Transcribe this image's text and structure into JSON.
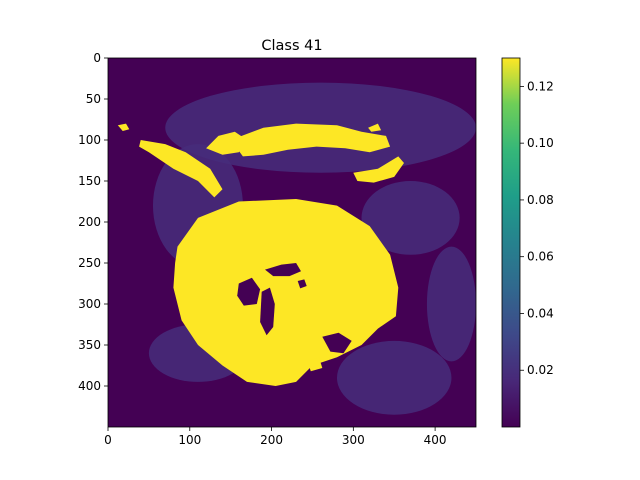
{
  "chart_data": {
    "type": "heatmap",
    "title": "Class 41",
    "xlabel": "",
    "ylabel": "",
    "xlim": [
      0,
      450
    ],
    "ylim": [
      450,
      0
    ],
    "x_ticks": [
      0,
      100,
      200,
      300,
      400
    ],
    "y_ticks": [
      0,
      50,
      100,
      150,
      200,
      250,
      300,
      350,
      400
    ],
    "colorbar": {
      "range": [
        0.0,
        0.13
      ],
      "ticks": [
        0.02,
        0.04,
        0.06,
        0.08,
        0.1,
        0.12
      ],
      "tick_labels": [
        "0.02",
        "0.04",
        "0.06",
        "0.08",
        "0.10",
        "0.12"
      ]
    },
    "colormap": "viridis",
    "colors": {
      "low": "#440154",
      "faint": "#472d7b",
      "high": "#fde725"
    },
    "background_value": 0.002,
    "faint_regions": [
      {
        "name": "upper-arc",
        "cx": 260,
        "cy": 85,
        "rx": 190,
        "ry": 55,
        "value": 0.012
      },
      {
        "name": "left-cheek",
        "cx": 110,
        "cy": 180,
        "rx": 55,
        "ry": 75,
        "value": 0.012
      },
      {
        "name": "right-cheek",
        "cx": 370,
        "cy": 195,
        "rx": 60,
        "ry": 45,
        "value": 0.012
      },
      {
        "name": "lower-left",
        "cx": 110,
        "cy": 360,
        "rx": 60,
        "ry": 35,
        "value": 0.01
      },
      {
        "name": "lower-right",
        "cx": 350,
        "cy": 390,
        "rx": 70,
        "ry": 45,
        "value": 0.01
      },
      {
        "name": "right-edge",
        "cx": 420,
        "cy": 300,
        "rx": 30,
        "ry": 70,
        "value": 0.01
      }
    ],
    "high_regions": [
      {
        "name": "central-blob",
        "value": 0.13,
        "points": [
          [
            85,
            230
          ],
          [
            110,
            195
          ],
          [
            160,
            175
          ],
          [
            230,
            172
          ],
          [
            280,
            180
          ],
          [
            320,
            205
          ],
          [
            345,
            240
          ],
          [
            355,
            280
          ],
          [
            352,
            315
          ],
          [
            330,
            330
          ],
          [
            310,
            350
          ],
          [
            280,
            365
          ],
          [
            250,
            375
          ],
          [
            230,
            395
          ],
          [
            205,
            400
          ],
          [
            170,
            395
          ],
          [
            140,
            375
          ],
          [
            110,
            350
          ],
          [
            90,
            320
          ],
          [
            80,
            280
          ],
          [
            82,
            250
          ]
        ]
      },
      {
        "name": "upper-left-streak",
        "value": 0.13,
        "points": [
          [
            40,
            100
          ],
          [
            70,
            105
          ],
          [
            95,
            115
          ],
          [
            125,
            135
          ],
          [
            140,
            160
          ],
          [
            130,
            170
          ],
          [
            110,
            150
          ],
          [
            80,
            135
          ],
          [
            50,
            115
          ],
          [
            38,
            108
          ]
        ]
      },
      {
        "name": "upper-left-tip",
        "value": 0.13,
        "points": [
          [
            120,
            110
          ],
          [
            135,
            95
          ],
          [
            155,
            90
          ],
          [
            170,
            100
          ],
          [
            160,
            115
          ],
          [
            140,
            118
          ]
        ]
      },
      {
        "name": "upper-left-dot",
        "value": 0.13,
        "points": [
          [
            12,
            82
          ],
          [
            22,
            80
          ],
          [
            26,
            87
          ],
          [
            18,
            89
          ]
        ]
      },
      {
        "name": "upper-center-band",
        "value": 0.13,
        "points": [
          [
            150,
            100
          ],
          [
            190,
            85
          ],
          [
            230,
            80
          ],
          [
            280,
            82
          ],
          [
            310,
            90
          ],
          [
            340,
            95
          ],
          [
            345,
            108
          ],
          [
            320,
            115
          ],
          [
            290,
            110
          ],
          [
            255,
            108
          ],
          [
            220,
            112
          ],
          [
            190,
            118
          ],
          [
            165,
            120
          ]
        ]
      },
      {
        "name": "upper-right-tail",
        "value": 0.13,
        "points": [
          [
            300,
            140
          ],
          [
            330,
            135
          ],
          [
            355,
            120
          ],
          [
            362,
            128
          ],
          [
            350,
            145
          ],
          [
            325,
            152
          ],
          [
            305,
            150
          ]
        ]
      },
      {
        "name": "upper-right-dot",
        "value": 0.13,
        "points": [
          [
            318,
            85
          ],
          [
            330,
            80
          ],
          [
            334,
            88
          ],
          [
            322,
            90
          ]
        ]
      },
      {
        "name": "lower-right-fleck",
        "value": 0.13,
        "points": [
          [
            244,
            370
          ],
          [
            258,
            365
          ],
          [
            262,
            378
          ],
          [
            248,
            382
          ]
        ]
      }
    ],
    "holes": [
      {
        "name": "left-eye",
        "value": 0.002,
        "points": [
          [
            160,
            275
          ],
          [
            176,
            268
          ],
          [
            186,
            282
          ],
          [
            182,
            300
          ],
          [
            166,
            302
          ],
          [
            158,
            290
          ]
        ]
      },
      {
        "name": "nose-slot",
        "value": 0.002,
        "points": [
          [
            188,
            285
          ],
          [
            198,
            280
          ],
          [
            204,
            300
          ],
          [
            202,
            328
          ],
          [
            194,
            338
          ],
          [
            186,
            322
          ]
        ]
      },
      {
        "name": "brow",
        "value": 0.002,
        "points": [
          [
            192,
            258
          ],
          [
            212,
            252
          ],
          [
            230,
            250
          ],
          [
            236,
            260
          ],
          [
            222,
            266
          ],
          [
            202,
            266
          ]
        ]
      },
      {
        "name": "dot",
        "value": 0.002,
        "points": [
          [
            232,
            272
          ],
          [
            240,
            270
          ],
          [
            243,
            278
          ],
          [
            235,
            281
          ]
        ]
      },
      {
        "name": "lower-notch",
        "value": 0.002,
        "points": [
          [
            262,
            340
          ],
          [
            282,
            335
          ],
          [
            298,
            345
          ],
          [
            288,
            360
          ],
          [
            272,
            358
          ]
        ]
      }
    ]
  }
}
